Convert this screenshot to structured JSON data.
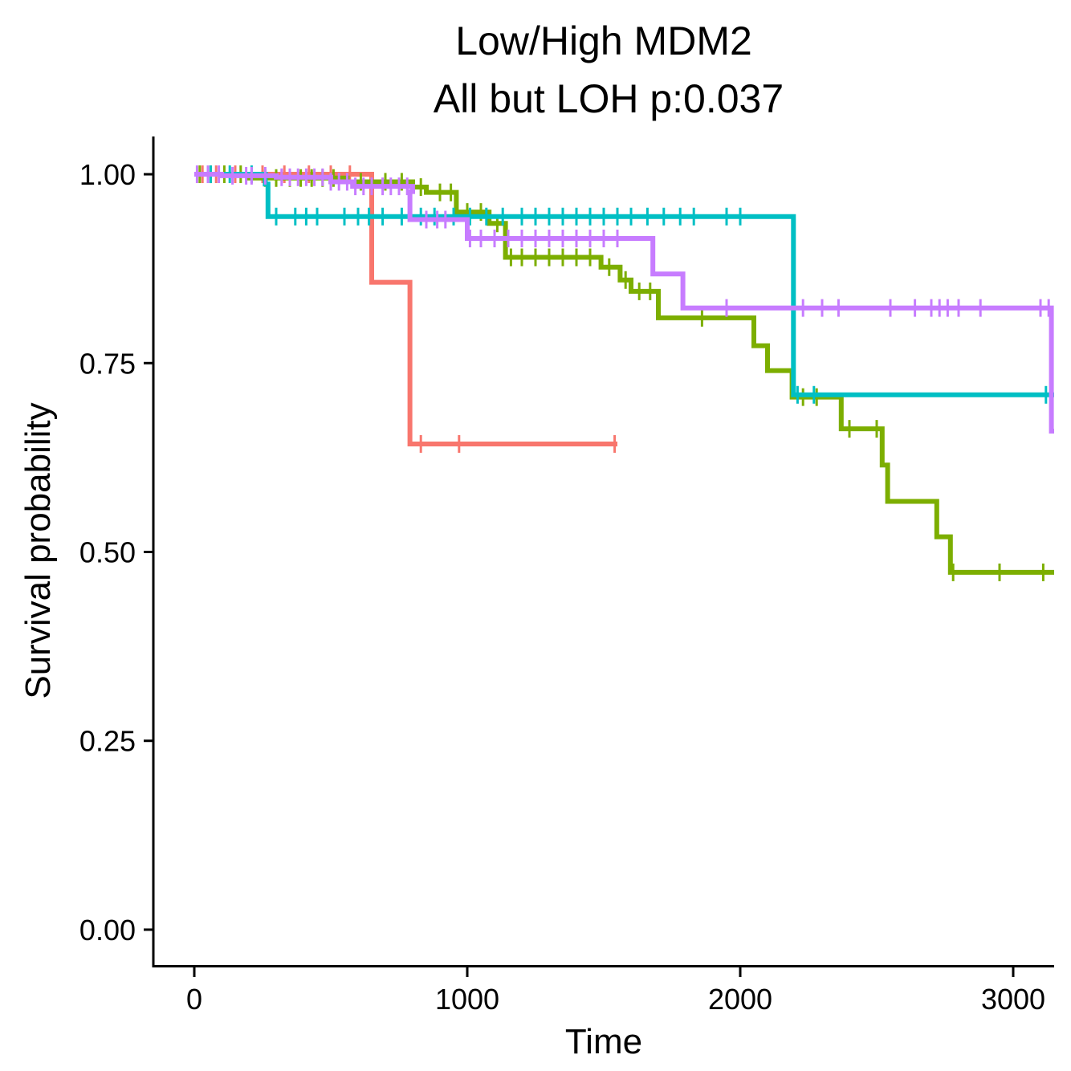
{
  "chart_data": {
    "type": "line",
    "subtype": "kaplan-meier",
    "title_lines": [
      "Low/High MDM2",
      "All but LOH p:0.037"
    ],
    "xlabel": "Time",
    "ylabel": "Survival probability",
    "xlim": [
      -150,
      3150
    ],
    "ylim": [
      -0.05,
      1.05
    ],
    "xticks": [
      0,
      1000,
      2000,
      3000
    ],
    "xtick_labels": [
      "0",
      "1000",
      "2000",
      "3000"
    ],
    "yticks": [
      0,
      0.25,
      0.5,
      0.75,
      1.0
    ],
    "ytick_labels": [
      "0.00",
      "0.25",
      "0.50",
      "0.75",
      "1.00"
    ],
    "grid": false,
    "legend": "none",
    "series": [
      {
        "color": "#F8766D",
        "steps": [
          [
            0,
            1.0
          ],
          [
            650,
            0.857
          ],
          [
            790,
            0.643
          ],
          [
            1550,
            0.643
          ]
        ],
        "censor_times": [
          30,
          80,
          150,
          250,
          330,
          420,
          500,
          570,
          830,
          970,
          1540
        ]
      },
      {
        "color": "#7CAE00",
        "steps": [
          [
            0,
            1.0
          ],
          [
            200,
            0.995
          ],
          [
            560,
            0.99
          ],
          [
            800,
            0.983
          ],
          [
            850,
            0.976
          ],
          [
            960,
            0.95
          ],
          [
            1080,
            0.935
          ],
          [
            1140,
            0.89
          ],
          [
            1490,
            0.877
          ],
          [
            1560,
            0.86
          ],
          [
            1600,
            0.845
          ],
          [
            1700,
            0.81
          ],
          [
            2050,
            0.773
          ],
          [
            2100,
            0.74
          ],
          [
            2190,
            0.705
          ],
          [
            2370,
            0.663
          ],
          [
            2520,
            0.615
          ],
          [
            2540,
            0.567
          ],
          [
            2720,
            0.52
          ],
          [
            2770,
            0.473
          ],
          [
            3150,
            0.473
          ]
        ],
        "censor_times": [
          20,
          60,
          110,
          170,
          260,
          300,
          350,
          390,
          430,
          470,
          510,
          610,
          700,
          760,
          830,
          900,
          940,
          1000,
          1050,
          1110,
          1160,
          1200,
          1250,
          1300,
          1350,
          1400,
          1450,
          1520,
          1580,
          1630,
          1670,
          1860,
          2230,
          2280,
          2400,
          2500,
          2780,
          2950,
          3110
        ]
      },
      {
        "color": "#00BFC4",
        "steps": [
          [
            0,
            1.0
          ],
          [
            260,
            0.987
          ],
          [
            270,
            0.944
          ],
          [
            2190,
            0.944
          ],
          [
            2195,
            0.708
          ],
          [
            3150,
            0.708
          ]
        ],
        "censor_times": [
          60,
          130,
          210,
          300,
          370,
          410,
          450,
          550,
          600,
          640,
          690,
          760,
          830,
          880,
          950,
          1010,
          1070,
          1130,
          1200,
          1250,
          1300,
          1350,
          1400,
          1450,
          1500,
          1550,
          1600,
          1660,
          1720,
          1780,
          1830,
          1950,
          2000,
          2210,
          2270,
          3120
        ]
      },
      {
        "color": "#C77CFF",
        "steps": [
          [
            0,
            1.0
          ],
          [
            100,
            0.998
          ],
          [
            300,
            0.996
          ],
          [
            500,
            0.99
          ],
          [
            580,
            0.984
          ],
          [
            800,
            0.977
          ],
          [
            790,
            0.94
          ],
          [
            1000,
            0.915
          ],
          [
            1670,
            0.915
          ],
          [
            1680,
            0.868
          ],
          [
            1790,
            0.823
          ],
          [
            3130,
            0.823
          ],
          [
            3140,
            0.66
          ],
          [
            3150,
            0.66
          ]
        ],
        "censor_times": [
          10,
          50,
          90,
          140,
          190,
          210,
          260,
          320,
          350,
          380,
          410,
          440,
          470,
          500,
          530,
          560,
          590,
          620,
          650,
          690,
          720,
          750,
          780,
          850,
          890,
          920,
          1010,
          1050,
          1100,
          1150,
          1200,
          1250,
          1300,
          1350,
          1400,
          1450,
          1500,
          1550,
          1950,
          2230,
          2300,
          2360,
          2550,
          2640,
          2700,
          2730,
          2760,
          2800,
          2880,
          3100,
          3130
        ]
      }
    ]
  }
}
